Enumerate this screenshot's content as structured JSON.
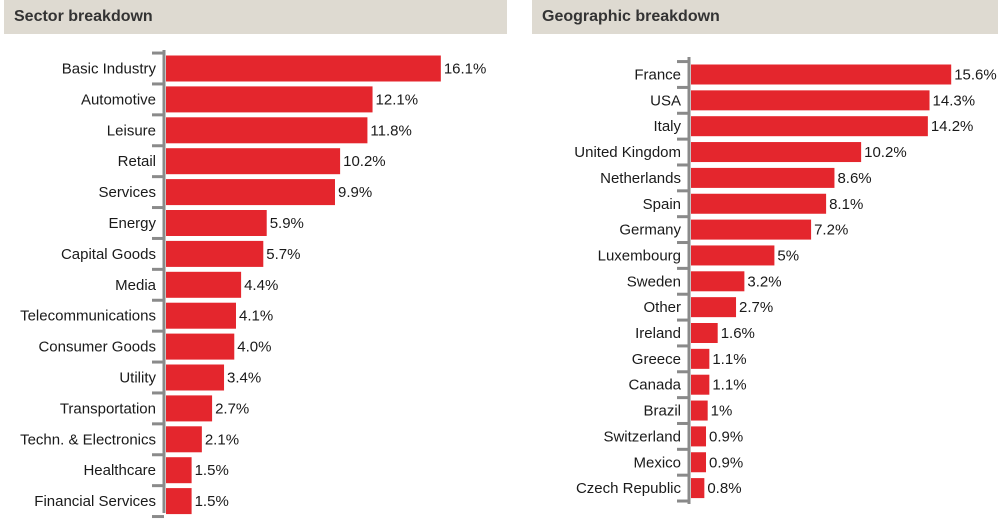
{
  "colors": {
    "bar": "#e4262d",
    "axis": "#8a8a8a",
    "header_bg": "#dedad1"
  },
  "left_panel": {
    "title": "Sector breakdown"
  },
  "right_panel": {
    "title": "Geographic breakdown"
  },
  "chart_data": [
    {
      "type": "bar",
      "orientation": "horizontal",
      "title": "Sector breakdown",
      "categories": [
        "Basic Industry",
        "Automotive",
        "Leisure",
        "Retail",
        "Services",
        "Energy",
        "Capital Goods",
        "Media",
        "Telecommunications",
        "Consumer Goods",
        "Utility",
        "Transportation",
        "Techn. & Electronics",
        "Healthcare",
        "Financial Services"
      ],
      "values": [
        16.1,
        12.1,
        11.8,
        10.2,
        9.9,
        5.9,
        5.7,
        4.4,
        4.1,
        4.0,
        3.4,
        2.7,
        2.1,
        1.5,
        1.5
      ],
      "labels": [
        "16.1%",
        "12.1%",
        "11.8%",
        "10.2%",
        "9.9%",
        "5.9%",
        "5.7%",
        "4.4%",
        "4.1%",
        "4.0%",
        "3.4%",
        "2.7%",
        "2.1%",
        "1.5%",
        "1.5%"
      ],
      "unit": "%",
      "grid": false
    },
    {
      "type": "bar",
      "orientation": "horizontal",
      "title": "Geographic breakdown",
      "categories": [
        "France",
        "USA",
        "Italy",
        "United Kingdom",
        "Netherlands",
        "Spain",
        "Germany",
        "Luxembourg",
        "Sweden",
        "Other",
        "Ireland",
        "Greece",
        "Canada",
        "Brazil",
        "Switzerland",
        "Mexico",
        "Czech Republic"
      ],
      "values": [
        15.6,
        14.3,
        14.2,
        10.2,
        8.6,
        8.1,
        7.2,
        5,
        3.2,
        2.7,
        1.6,
        1.1,
        1.1,
        1,
        0.9,
        0.9,
        0.8
      ],
      "labels": [
        "15.6%",
        "14.3%",
        "14.2%",
        "10.2%",
        "8.6%",
        "8.1%",
        "7.2%",
        "5%",
        "3.2%",
        "2.7%",
        "1.6%",
        "1.1%",
        "1.1%",
        "1%",
        "0.9%",
        "0.9%",
        "0.8%"
      ],
      "unit": "%",
      "grid": false
    }
  ]
}
